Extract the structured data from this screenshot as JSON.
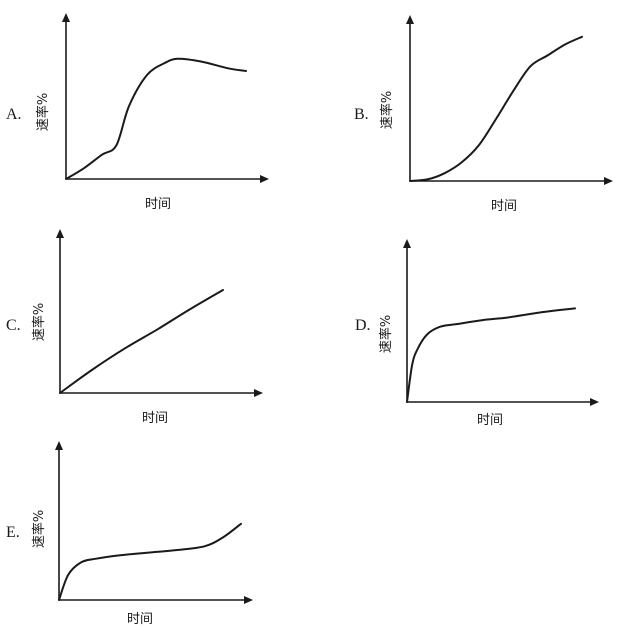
{
  "chart_data": [
    {
      "label": "A.",
      "type": "line",
      "xlabel": "时间",
      "ylabel": "速率%",
      "x": [
        0,
        10,
        20,
        28,
        35,
        45,
        55,
        62,
        75,
        90,
        100
      ],
      "y": [
        0,
        8,
        18,
        25,
        54,
        77,
        86,
        89,
        87,
        82,
        80
      ]
    },
    {
      "label": "B.",
      "type": "line",
      "xlabel": "时间",
      "ylabel": "速率%",
      "x": [
        0,
        10,
        20,
        30,
        40,
        50,
        60,
        70,
        80,
        90,
        100
      ],
      "y": [
        0,
        1,
        5,
        12,
        23,
        40,
        58,
        74,
        81,
        88,
        93
      ]
    },
    {
      "label": "C.",
      "type": "line",
      "xlabel": "时间",
      "ylabel": "速率%",
      "x": [
        0,
        20,
        40,
        60,
        80,
        100
      ],
      "y": [
        0,
        21,
        40,
        57,
        75,
        92
      ]
    },
    {
      "label": "D.",
      "type": "line",
      "xlabel": "时间",
      "ylabel": "速率%",
      "x": [
        0,
        3,
        6,
        12,
        20,
        30,
        45,
        60,
        80,
        100
      ],
      "y": [
        0,
        28,
        40,
        52,
        58,
        60,
        63,
        65,
        69,
        72
      ]
    },
    {
      "label": "E.",
      "type": "line",
      "xlabel": "时间",
      "ylabel": "速率%",
      "x": [
        0,
        5,
        12,
        20,
        35,
        50,
        65,
        80,
        90,
        100
      ],
      "y": [
        0,
        20,
        30,
        33,
        36,
        38,
        40,
        43,
        50,
        61
      ]
    }
  ]
}
